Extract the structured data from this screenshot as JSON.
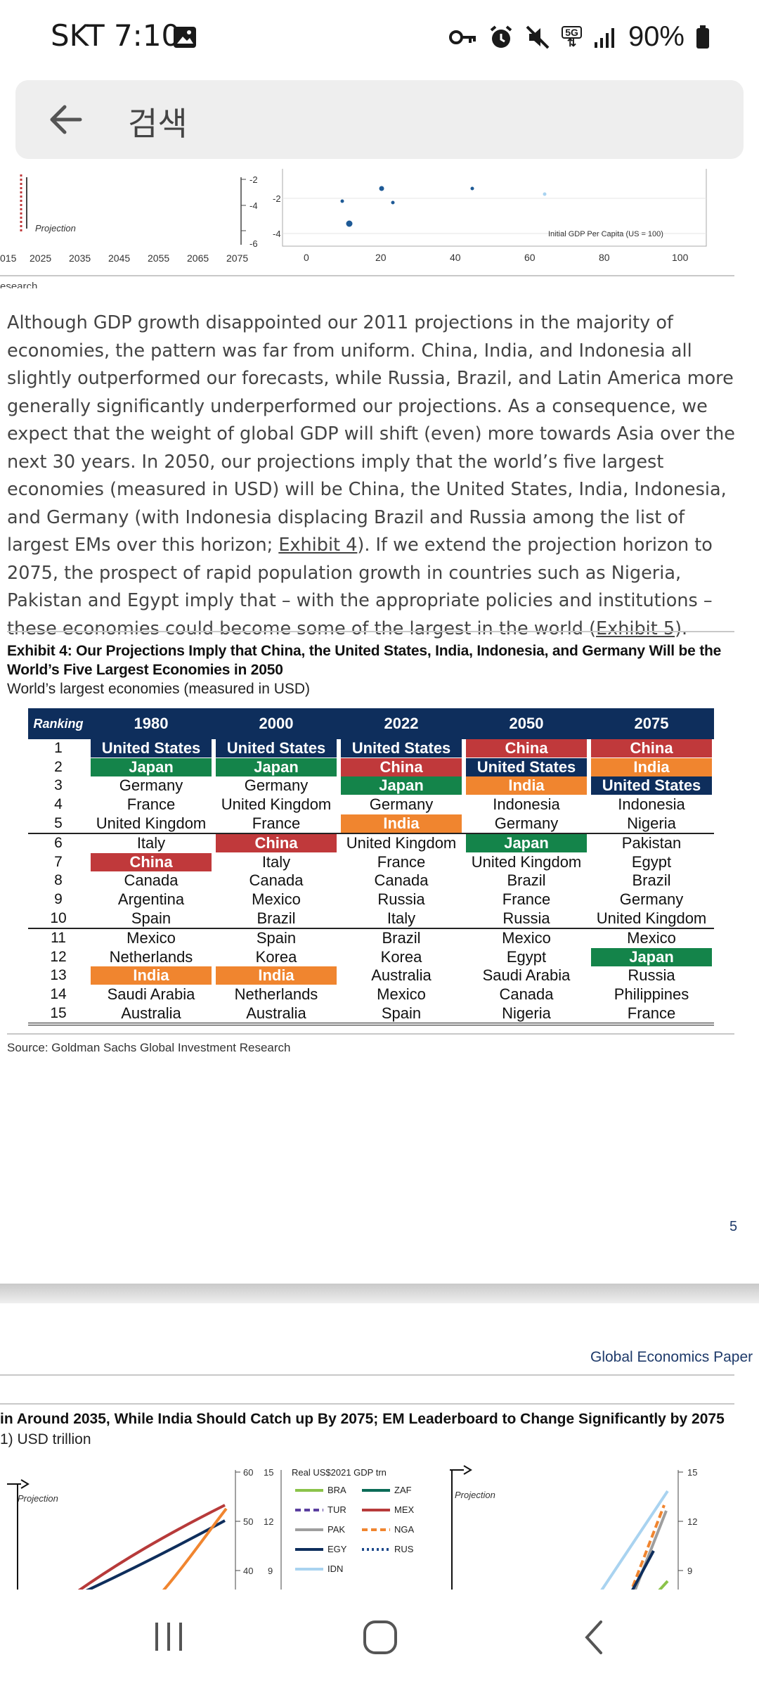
{
  "status_bar": {
    "carrier_time": "SKT 7:10",
    "network": "5G",
    "battery": "90%"
  },
  "search": {
    "label": "검색"
  },
  "top_chart": {
    "left_label": "Projection",
    "left_axis_ticks": [
      "-2",
      "-4",
      "-6"
    ],
    "years": [
      "015",
      "2025",
      "2035",
      "2045",
      "2055",
      "2065",
      "2075"
    ],
    "right_y_ticks": [
      "-2",
      "-4"
    ],
    "x_ticks": [
      "0",
      "20",
      "40",
      "60",
      "80",
      "100"
    ],
    "x_label": "Initial GDP Per Capita (US = 100)",
    "source_fragment": "esearch"
  },
  "paragraph": {
    "part1": "Although GDP growth disappointed our 2011 projections in the majority of economies, the pattern was far from uniform. China, India, and Indonesia all slightly outperformed our forecasts, while Russia, Brazil, and Latin America more generally significantly underperformed our projections. As a consequence, we expect that the weight of global GDP will shift (even) more towards Asia over the next 30 years. In 2050, our projections imply that the world’s five largest economies (measured in USD) will be China, the United States, India, Indonesia, and Germany (with Indonesia displacing Brazil and Russia among the list of largest EMs over this horizon; ",
    "link1": "Exhibit 4",
    "part2": "). If we extend the projection horizon to 2075, the prospect of rapid population growth in countries such as Nigeria, Pakistan and Egypt imply that – with the appropriate policies and institutions – these economies could become some of the largest in the world (",
    "link2": "Exhibit 5",
    "part3": ")."
  },
  "exhibit4": {
    "title": "Exhibit 4: Our Projections Imply that China, the United States, India, Indonesia, and Germany Will be the World’s Five Largest Economies in 2050",
    "subtitle": "World’s largest economies (measured in USD)",
    "headers": [
      "Ranking",
      "1980",
      "2000",
      "2022",
      "2050",
      "2075"
    ],
    "rows": [
      [
        "1",
        "United States",
        "United States",
        "United States",
        "China",
        "China"
      ],
      [
        "2",
        "Japan",
        "Japan",
        "China",
        "United States",
        "India"
      ],
      [
        "3",
        "Germany",
        "Germany",
        "Japan",
        "India",
        "United States"
      ],
      [
        "4",
        "France",
        "United Kingdom",
        "Germany",
        "Indonesia",
        "Indonesia"
      ],
      [
        "5",
        "United Kingdom",
        "France",
        "India",
        "Germany",
        "Nigeria"
      ],
      [
        "6",
        "Italy",
        "China",
        "United Kingdom",
        "Japan",
        "Pakistan"
      ],
      [
        "7",
        "China",
        "Italy",
        "France",
        "United Kingdom",
        "Egypt"
      ],
      [
        "8",
        "Canada",
        "Canada",
        "Canada",
        "Brazil",
        "Brazil"
      ],
      [
        "9",
        "Argentina",
        "Mexico",
        "Russia",
        "France",
        "Germany"
      ],
      [
        "10",
        "Spain",
        "Brazil",
        "Italy",
        "Russia",
        "United Kingdom"
      ],
      [
        "11",
        "Mexico",
        "Spain",
        "Brazil",
        "Mexico",
        "Mexico"
      ],
      [
        "12",
        "Netherlands",
        "Korea",
        "Korea",
        "Egypt",
        "Japan"
      ],
      [
        "13",
        "India",
        "India",
        "Australia",
        "Saudi Arabia",
        "Russia"
      ],
      [
        "14",
        "Saudi Arabia",
        "Netherlands",
        "Mexico",
        "Canada",
        "Philippines"
      ],
      [
        "15",
        "Australia",
        "Australia",
        "Spain",
        "Nigeria",
        "France"
      ]
    ],
    "source": "Source: Goldman Sachs Global Investment Research"
  },
  "colors": {
    "United States": "#0e2e5c",
    "Japan": "#14844a",
    "China": "#c0393b",
    "India": "#f0852f"
  },
  "page_number": "5",
  "next_page": {
    "header": "Global Economics Paper",
    "title": "in Around 2035, While India Should Catch up By 2075; EM Leaderboard to Change Significantly by 2075",
    "subtitle": "1) USD trillion",
    "projection_label": "Projection",
    "projection_label_right": "Projection",
    "left_ticks": [
      "60",
      "50",
      "40"
    ],
    "mid_ticks": [
      "15",
      "12",
      "9"
    ],
    "right_ticks": [
      "15",
      "12",
      "9"
    ],
    "legend_title": "Real US$2021 GDP trn",
    "legend": [
      {
        "name": "BRA",
        "color": "#8bc34a",
        "dash": "solid"
      },
      {
        "name": "ZAF",
        "color": "#0b6b57",
        "dash": "solid"
      },
      {
        "name": "TUR",
        "color": "#5b3fa0",
        "dash": "dashed"
      },
      {
        "name": "MEX",
        "color": "#b73a3a",
        "dash": "solid"
      },
      {
        "name": "PAK",
        "color": "#9e9e9e",
        "dash": "solid"
      },
      {
        "name": "NGA",
        "color": "#f0852f",
        "dash": "dashed"
      },
      {
        "name": "EGY",
        "color": "#0e2e5c",
        "dash": "solid"
      },
      {
        "name": "RUS",
        "color": "#1e4a8c",
        "dash": "dotted"
      },
      {
        "name": "IDN",
        "color": "#a9d3f0",
        "dash": "solid"
      }
    ]
  }
}
